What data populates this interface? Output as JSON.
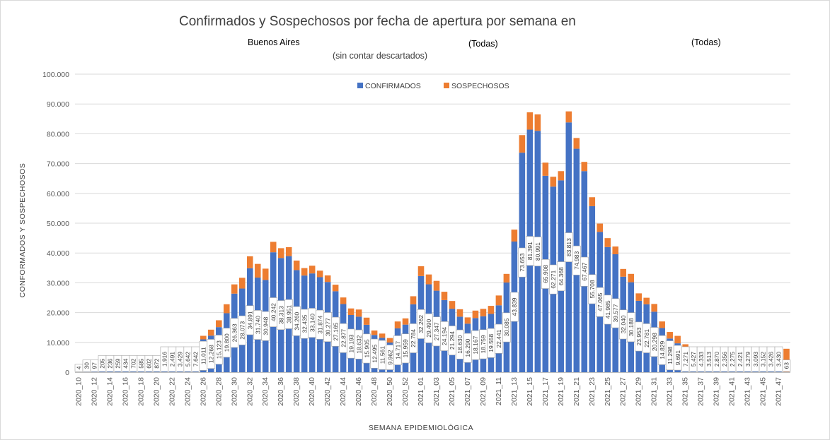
{
  "filters": {
    "region": "Buenos Aires",
    "filter_a": "(Todas)",
    "filter_b": "(Todas)"
  },
  "chart_data": {
    "type": "bar",
    "stacked": true,
    "title": "Confirmados y Sospechosos por fecha de apertura por semana en",
    "subtitle": "(sin contar descartados)",
    "xlabel": "SEMANA EPIDEMIOLÓGICA",
    "ylabel": "CONFORMADOS Y SOSPECHOSOS",
    "ylim": [
      0,
      100000
    ],
    "y_ticks": [
      "0",
      "10.000",
      "20.000",
      "30.000",
      "40.000",
      "50.000",
      "60.000",
      "70.000",
      "80.000",
      "90.000",
      "100.000"
    ],
    "legend_position": "top",
    "colors": {
      "confirmados": "#4472C4",
      "sospechosos": "#ED7D31"
    },
    "categories": [
      "2020_10",
      "2020_11",
      "2020_12",
      "2020_13",
      "2020_14",
      "2020_15",
      "2020_16",
      "2020_17",
      "2020_18",
      "2020_19",
      "2020_20",
      "2020_21",
      "2020_22",
      "2020_23",
      "2020_24",
      "2020_25",
      "2020_26",
      "2020_27",
      "2020_28",
      "2020_29",
      "2020_30",
      "2020_31",
      "2020_32",
      "2020_33",
      "2020_34",
      "2020_35",
      "2020_36",
      "2020_37",
      "2020_38",
      "2020_39",
      "2020_40",
      "2020_41",
      "2020_42",
      "2020_43",
      "2020_44",
      "2020_45",
      "2020_46",
      "2020_47",
      "2020_48",
      "2020_49",
      "2020_50",
      "2020_51",
      "2020_52",
      "2020_53",
      "2021_01",
      "2021_02",
      "2021_03",
      "2021_04",
      "2021_05",
      "2021_06",
      "2021_07",
      "2021_08",
      "2021_09",
      "2021_10",
      "2021_11",
      "2021_12",
      "2021_13",
      "2021_14",
      "2021_15",
      "2021_16",
      "2021_17",
      "2021_18",
      "2021_19",
      "2021_20",
      "2021_21",
      "2021_22",
      "2021_23",
      "2021_24",
      "2021_25",
      "2021_26",
      "2021_27",
      "2021_28",
      "2021_29",
      "2021_30",
      "2021_31",
      "2021_32",
      "2021_33",
      "2021_34",
      "2021_35",
      "2021_36",
      "2021_37",
      "2021_38",
      "2021_39",
      "2021_40",
      "2021_41",
      "2021_42",
      "2021_43",
      "2021_44",
      "2021_45",
      "2021_46",
      "2021_47",
      "2021_48"
    ],
    "x_tick_labels": [
      "2020_10",
      "2020_12",
      "2020_14",
      "2020_16",
      "2020_18",
      "2020_20",
      "2020_22",
      "2020_24",
      "2020_26",
      "2020_28",
      "2020_30",
      "2020_32",
      "2020_34",
      "2020_36",
      "2020_38",
      "2020_40",
      "2020_42",
      "2020_44",
      "2020_46",
      "2020_48",
      "2020_50",
      "2020_52",
      "2021_01",
      "2021_03",
      "2021_05",
      "2021_07",
      "2021_09",
      "2021_11",
      "2021_13",
      "2021_15",
      "2021_17",
      "2021_19",
      "2021_21",
      "2021_23",
      "2021_25",
      "2021_27",
      "2021_29",
      "2021_31",
      "2021_33",
      "2021_35",
      "2021_37",
      "2021_39",
      "2021_41",
      "2021_43",
      "2021_45",
      "2021_47"
    ],
    "series": [
      {
        "name": "CONFIRMADOS",
        "values": [
          4,
          30,
          97,
          205,
          236,
          259,
          434,
          702,
          585,
          602,
          872,
          1916,
          2491,
          3429,
          5642,
          7642,
          11011,
          12268,
          15123,
          19800,
          26363,
          28073,
          34891,
          31740,
          30948,
          40242,
          38313,
          38951,
          34260,
          32435,
          33140,
          31874,
          30277,
          27165,
          22877,
          19193,
          18632,
          15905,
          12495,
          11561,
          9962,
          14717,
          15959,
          22784,
          32262,
          29490,
          27347,
          24194,
          21294,
          18630,
          16290,
          18167,
          18759,
          19558,
          22441,
          30085,
          43839,
          73653,
          81391,
          80991,
          65908,
          62271,
          64368,
          83813,
          74983,
          67467,
          55708,
          47065,
          41985,
          39577,
          32040,
          30188,
          23953,
          22781,
          20298,
          14829,
          11298,
          9691,
          7271,
          5427,
          4333,
          3513,
          2870,
          2356,
          2275,
          2421,
          3279,
          3093,
          3152,
          3426,
          3430,
          63
        ],
        "labels": [
          "4",
          "30",
          "97",
          "205",
          "236",
          "259",
          "434",
          "702",
          "585",
          "602",
          "872",
          "1.916",
          "2.491",
          "3.429",
          "5.642",
          "7.642",
          "11.011",
          "12.268",
          "15.123",
          "19.800",
          "26.363",
          "28.073",
          "34.891",
          "31.740",
          "30.948",
          "40.242",
          "38.313",
          "38.951",
          "34.260",
          "32.435",
          "33.140",
          "31.874",
          "30.277",
          "27.165",
          "22.877",
          "19.193",
          "18.632",
          "15.905",
          "12.495",
          "11.561",
          "9.962",
          "14.717",
          "15.959",
          "22.784",
          "32.262",
          "29.490",
          "27.347",
          "24.194",
          "21.294",
          "18.630",
          "16.290",
          "18.167",
          "18.759",
          "19.558",
          "22.441",
          "30.085",
          "43.839",
          "73.653",
          "81.391",
          "80.991",
          "65.908",
          "62.271",
          "64.368",
          "83.813",
          "74.983",
          "67.467",
          "55.708",
          "47.065",
          "41.985",
          "39.577",
          "32.040",
          "30.188",
          "23.953",
          "22.781",
          "20.298",
          "14.829",
          "11.298",
          "9.691",
          "7.271",
          "5.427",
          "4.333",
          "3.513",
          "2.870",
          "2.356",
          "2.275",
          "2.421",
          "3.279",
          "3.093",
          "3.152",
          "3.426",
          "3.430",
          "63"
        ]
      },
      {
        "name": "SOSPECHOSOS",
        "values": [
          0,
          0,
          0,
          0,
          0,
          0,
          0,
          0,
          0,
          0,
          0,
          0,
          0,
          0,
          300,
          600,
          1200,
          2000,
          2300,
          3000,
          3100,
          3600,
          4000,
          4600,
          3800,
          3500,
          3300,
          3000,
          3200,
          2500,
          2600,
          2200,
          2200,
          2200,
          2200,
          2200,
          2400,
          2400,
          1500,
          1400,
          1500,
          2300,
          2100,
          2700,
          3300,
          3300,
          3300,
          2800,
          2600,
          2500,
          2100,
          2500,
          2500,
          2700,
          3300,
          2900,
          4000,
          5900,
          5800,
          5500,
          4400,
          3300,
          3100,
          3700,
          3600,
          3100,
          3000,
          2800,
          3000,
          2600,
          2600,
          2800,
          2500,
          2200,
          2600,
          2200,
          2200,
          2500,
          2100,
          1900,
          1800,
          1600,
          1500,
          1000,
          1000,
          1800,
          1800,
          1800,
          2000,
          2900,
          4600,
          7800
        ]
      }
    ]
  }
}
